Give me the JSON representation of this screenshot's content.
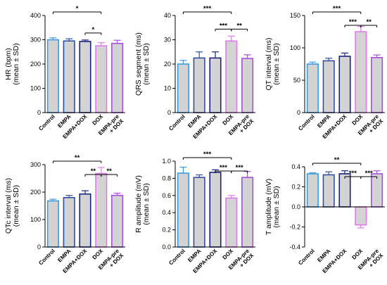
{
  "colors": {
    "bar_fill": "#d3d3d3",
    "groups": [
      "#3b9be0",
      "#2f4f9e",
      "#1a237e",
      "#e07ae8",
      "#a64de0"
    ]
  },
  "chart_data": [
    {
      "type": "bar",
      "categories": [
        "Control",
        "EMPA",
        "EMPA+DOX",
        "DOX",
        "EMPA-pre + DOX"
      ],
      "values": [
        300,
        295,
        293,
        275,
        285
      ],
      "errors": [
        8,
        9,
        6,
        13,
        13
      ],
      "ylabel": "HR (bpm)",
      "ylabel2": "(mean ± SD)",
      "ylim": [
        0,
        400
      ],
      "yticks": [
        0,
        100,
        200,
        300,
        400
      ],
      "significance": [
        {
          "from": 0,
          "to": 3,
          "label": "*"
        },
        {
          "from": 2,
          "to": 3,
          "label": "*"
        }
      ]
    },
    {
      "type": "bar",
      "categories": [
        "Control",
        "EMPA",
        "EMPA+DOX",
        "DOX",
        "EMPA-pre + DOX"
      ],
      "values": [
        20,
        22.5,
        22.5,
        29.5,
        22.3
      ],
      "errors": [
        1.5,
        2.5,
        2.5,
        2.0,
        1.5
      ],
      "ylabel": "QRS segment (ms)",
      "ylabel2": "(mean ± SD)",
      "ylim": [
        0,
        40
      ],
      "yticks": [
        0,
        10,
        20,
        30,
        40
      ],
      "significance": [
        {
          "from": 0,
          "to": 3,
          "label": "***"
        },
        {
          "from": 2,
          "to": 3,
          "label": "***"
        },
        {
          "from": 3,
          "to": 4,
          "label": "**"
        }
      ]
    },
    {
      "type": "bar",
      "categories": [
        "Control",
        "EMPA",
        "EMPA+DOX",
        "DOX",
        "EMPA-pre + DOX"
      ],
      "values": [
        75,
        80,
        87,
        125,
        85
      ],
      "errors": [
        3,
        4,
        5,
        8,
        4
      ],
      "ylabel": "QT interval (ms)",
      "ylabel2": "(mean ± SD)",
      "ylim": [
        0,
        150
      ],
      "yticks": [
        0,
        50,
        100,
        150
      ],
      "significance": [
        {
          "from": 0,
          "to": 3,
          "label": "***"
        },
        {
          "from": 2,
          "to": 3,
          "label": "***"
        },
        {
          "from": 3,
          "to": 4,
          "label": "**"
        }
      ]
    },
    {
      "type": "bar",
      "categories": [
        "Control",
        "EMPA",
        "EMPA+DOX",
        "DOX",
        "EMPA-pre + DOX"
      ],
      "values": [
        168,
        180,
        193,
        268,
        188
      ],
      "errors": [
        6,
        8,
        12,
        22,
        8
      ],
      "ylabel": "QTc interval (ms)",
      "ylabel2": "(mean ± SD)",
      "ylim": [
        0,
        300
      ],
      "yticks": [
        0,
        100,
        200,
        300
      ],
      "significance": [
        {
          "from": 0,
          "to": 3,
          "label": "**"
        },
        {
          "from": 2,
          "to": 3,
          "label": "**"
        },
        {
          "from": 3,
          "to": 4,
          "label": "**"
        }
      ]
    },
    {
      "type": "bar",
      "categories": [
        "Control",
        "EMPA",
        "EMPA+DOX",
        "DOX",
        "EMPA-pre + DOX"
      ],
      "values": [
        0.86,
        0.81,
        0.87,
        0.57,
        0.81
      ],
      "errors": [
        0.07,
        0.03,
        0.03,
        0.03,
        0.07
      ],
      "ylabel": "R amplitude (mV)",
      "ylabel2": "(mean ± SD)",
      "ylim": [
        0,
        1.0
      ],
      "yticks": [
        0.0,
        0.2,
        0.4,
        0.6,
        0.8,
        1.0
      ],
      "significance": [
        {
          "from": 0,
          "to": 3,
          "label": "***"
        },
        {
          "from": 2,
          "to": 3,
          "label": "***"
        },
        {
          "from": 3,
          "to": 4,
          "label": "***"
        }
      ]
    },
    {
      "type": "bar",
      "categories": [
        "Control",
        "EMPA",
        "EMPA+DOX",
        "DOX",
        "EMPA-pre + DOX"
      ],
      "values": [
        0.33,
        0.32,
        0.33,
        -0.18,
        0.33
      ],
      "errors": [
        0.01,
        0.03,
        0.03,
        0.03,
        0.03
      ],
      "ylabel": "T amplitude (mV)",
      "ylabel2": "(mean ± SD)",
      "ylim": [
        -0.4,
        0.4
      ],
      "yticks": [
        -0.4,
        -0.2,
        0.0,
        0.2,
        0.4
      ],
      "significance": [
        {
          "from": 0,
          "to": 3,
          "label": "**"
        },
        {
          "from": 2,
          "to": 3,
          "label": "***"
        },
        {
          "from": 3,
          "to": 4,
          "label": "***"
        }
      ]
    }
  ]
}
